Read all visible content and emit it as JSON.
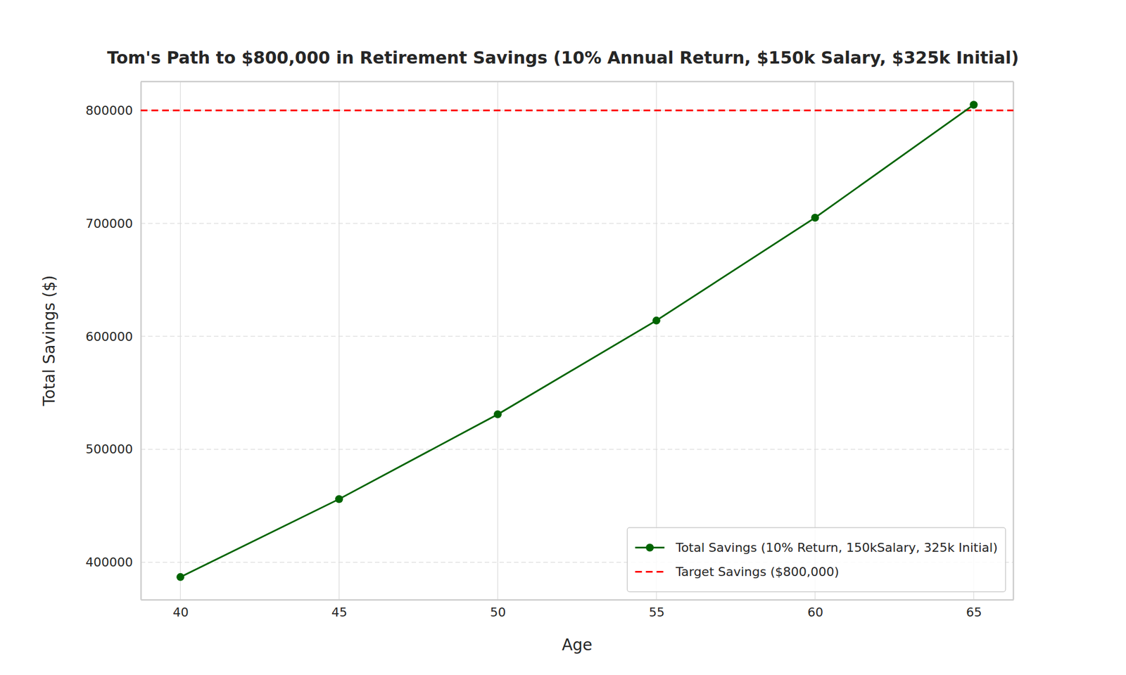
{
  "chart_data": {
    "type": "line",
    "title": "Tom's Path to $800,000 in Retirement Savings (10% Annual Return, $150k Salary, $325k Initial)",
    "x_label": "Age",
    "y_label": "Total Savings ($)",
    "x": [
      40,
      45,
      50,
      55,
      60,
      65
    ],
    "series": [
      {
        "name": "Total Savings (10% Return, 150kSalary, 325k Initial)",
        "color": "#006400",
        "marker": "circle",
        "line_style": "solid",
        "values": [
          387000,
          456000,
          531000,
          614000,
          705000,
          805000
        ]
      }
    ],
    "target_line": {
      "name": "Target Savings ($800,000)",
      "value": 800000,
      "color": "#ff0000",
      "line_style": "dashed"
    },
    "xlim": [
      38.75,
      66.25
    ],
    "xticks": [
      40,
      45,
      50,
      55,
      60,
      65
    ],
    "ylim": [
      367000,
      825500
    ],
    "yticks": [
      400000,
      500000,
      600000,
      700000,
      800000
    ],
    "grid": true,
    "legend": "lower right"
  }
}
